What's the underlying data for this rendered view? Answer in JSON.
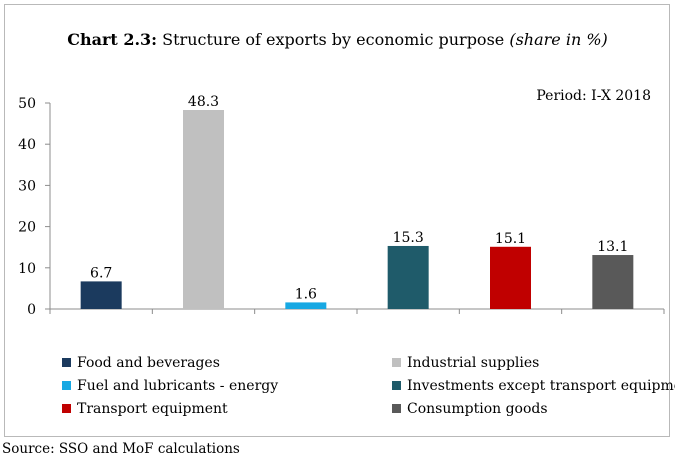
{
  "chart_data": {
    "type": "bar",
    "title_prefix": "Chart 2.3:",
    "title_main": " Structure of exports by economic purpose ",
    "title_unit": "(share in %)",
    "period_note": "Period: I-X 2018",
    "categories": [
      "Food and beverages",
      "Industrial supplies",
      "Fuel and lubricants - energy",
      "Investments except transport equipment",
      "Transport equipment",
      "Consumption goods"
    ],
    "values": [
      6.7,
      48.3,
      1.6,
      15.3,
      15.1,
      13.1
    ],
    "value_labels": [
      "6.7",
      "48.3",
      "1.6",
      "15.3",
      "15.1",
      "13.1"
    ],
    "colors": [
      "#1b3a5e",
      "#c0c0c0",
      "#17a8e3",
      "#1f5b6a",
      "#c00000",
      "#595959"
    ],
    "ylim": [
      0,
      50
    ],
    "yticks": [
      0,
      10,
      20,
      30,
      40,
      50
    ],
    "grid": false,
    "legend_position": "bottom",
    "xlabel": "",
    "ylabel": ""
  },
  "source": "Source: SSO and MoF calculations"
}
